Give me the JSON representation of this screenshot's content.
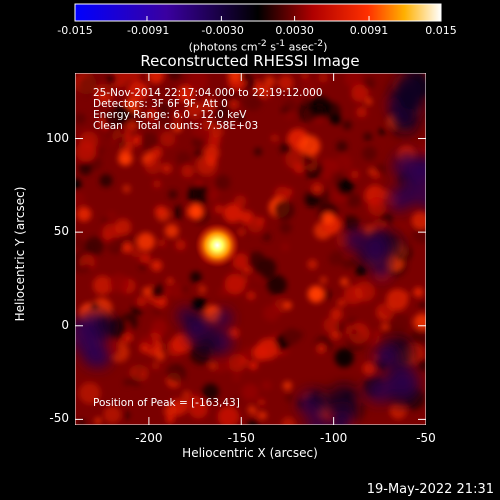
{
  "colorbar": {
    "ticks": [
      "-0.015",
      "-0.0091",
      "-0.0030",
      "0.0030",
      "0.0091",
      "0.015"
    ],
    "unit_html": "(photons cm<sup>-2</sup> s<sup>-1</sup> asec<sup>-2</sup>)",
    "unit_text": "(photons cm-2 s-1 asec-2)"
  },
  "chart_data": {
    "type": "heatmap",
    "title": "Reconstructed RHESSI Image",
    "xlabel": "Heliocentric X (arcsec)",
    "ylabel": "Heliocentric Y (arcsec)",
    "xlim": [
      -240,
      -50
    ],
    "ylim": [
      -53,
      135
    ],
    "xticks": [
      -200,
      -150,
      -100,
      -50
    ],
    "yticks": [
      -50,
      0,
      50,
      100
    ],
    "color_range": [
      -0.015,
      0.015
    ],
    "peak": {
      "x": -163,
      "y": 43
    }
  },
  "annotations": {
    "line1": "25-Nov-2014 22:17:04.000 to 22:19:12.000",
    "line2": "Detectors: 3F 6F 9F, Att 0",
    "line3": "Energy Range: 6.0 - 12.0 keV",
    "line4": "Clean    Total counts: 7.58E+03",
    "peak_text": "Position of Peak = [-163,43]"
  },
  "footer": {
    "timestamp": "19-May-2022 21:31"
  }
}
